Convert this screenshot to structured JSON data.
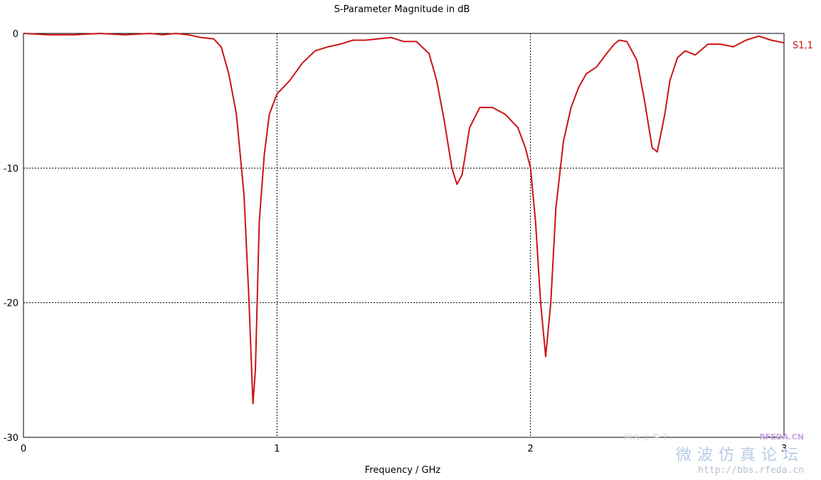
{
  "chart_data": {
    "type": "line",
    "title": "S-Parameter Magnitude in dB",
    "xlabel": "Frequency / GHz",
    "ylabel": "",
    "xlim": [
      0,
      3
    ],
    "ylim": [
      -30,
      0
    ],
    "x_ticks": [
      0,
      1,
      2,
      3
    ],
    "y_ticks": [
      0,
      -10,
      -20,
      -30
    ],
    "x_tick_labels": [
      "0",
      "1",
      "2",
      "3"
    ],
    "y_tick_labels": [
      "0",
      "-10",
      "-20",
      "-30"
    ],
    "grid": true,
    "legend_position": "right",
    "series": [
      {
        "name": "S1,1",
        "color": "#cc1414",
        "points": [
          [
            0.0,
            0.0
          ],
          [
            0.1,
            -0.1
          ],
          [
            0.2,
            -0.1
          ],
          [
            0.3,
            0.0
          ],
          [
            0.4,
            -0.1
          ],
          [
            0.5,
            0.0
          ],
          [
            0.55,
            -0.1
          ],
          [
            0.6,
            0.0
          ],
          [
            0.65,
            -0.1
          ],
          [
            0.7,
            -0.3
          ],
          [
            0.75,
            -0.4
          ],
          [
            0.78,
            -1.0
          ],
          [
            0.81,
            -3.0
          ],
          [
            0.84,
            -6.0
          ],
          [
            0.87,
            -12.0
          ],
          [
            0.89,
            -20.0
          ],
          [
            0.905,
            -27.5
          ],
          [
            0.915,
            -25.0
          ],
          [
            0.93,
            -14.0
          ],
          [
            0.95,
            -9.0
          ],
          [
            0.97,
            -6.0
          ],
          [
            1.0,
            -4.5
          ],
          [
            1.05,
            -3.5
          ],
          [
            1.1,
            -2.2
          ],
          [
            1.15,
            -1.3
          ],
          [
            1.2,
            -1.0
          ],
          [
            1.25,
            -0.8
          ],
          [
            1.3,
            -0.5
          ],
          [
            1.35,
            -0.5
          ],
          [
            1.4,
            -0.4
          ],
          [
            1.45,
            -0.3
          ],
          [
            1.5,
            -0.6
          ],
          [
            1.55,
            -0.6
          ],
          [
            1.6,
            -1.5
          ],
          [
            1.63,
            -3.5
          ],
          [
            1.66,
            -6.5
          ],
          [
            1.69,
            -10.0
          ],
          [
            1.71,
            -11.2
          ],
          [
            1.73,
            -10.5
          ],
          [
            1.76,
            -7.0
          ],
          [
            1.8,
            -5.5
          ],
          [
            1.85,
            -5.5
          ],
          [
            1.9,
            -6.0
          ],
          [
            1.95,
            -7.0
          ],
          [
            1.98,
            -8.5
          ],
          [
            2.0,
            -10.0
          ],
          [
            2.02,
            -14.0
          ],
          [
            2.04,
            -20.0
          ],
          [
            2.06,
            -24.0
          ],
          [
            2.08,
            -20.0
          ],
          [
            2.1,
            -13.0
          ],
          [
            2.13,
            -8.0
          ],
          [
            2.16,
            -5.5
          ],
          [
            2.19,
            -4.0
          ],
          [
            2.22,
            -3.0
          ],
          [
            2.26,
            -2.5
          ],
          [
            2.3,
            -1.5
          ],
          [
            2.33,
            -0.8
          ],
          [
            2.35,
            -0.5
          ],
          [
            2.38,
            -0.6
          ],
          [
            2.42,
            -2.0
          ],
          [
            2.45,
            -5.0
          ],
          [
            2.48,
            -8.5
          ],
          [
            2.5,
            -8.8
          ],
          [
            2.53,
            -6.0
          ],
          [
            2.55,
            -3.5
          ],
          [
            2.58,
            -1.8
          ],
          [
            2.61,
            -1.3
          ],
          [
            2.65,
            -1.6
          ],
          [
            2.7,
            -0.8
          ],
          [
            2.75,
            -0.8
          ],
          [
            2.8,
            -1.0
          ],
          [
            2.85,
            -0.5
          ],
          [
            2.9,
            -0.2
          ],
          [
            2.95,
            -0.5
          ],
          [
            3.0,
            -0.7
          ]
        ]
      }
    ]
  },
  "watermark": {
    "line1": "网友上传于",
    "brand": "RFEDA.CN",
    "line2": "微波仿真论坛",
    "url": "http://bbs.rfeda.cn"
  }
}
